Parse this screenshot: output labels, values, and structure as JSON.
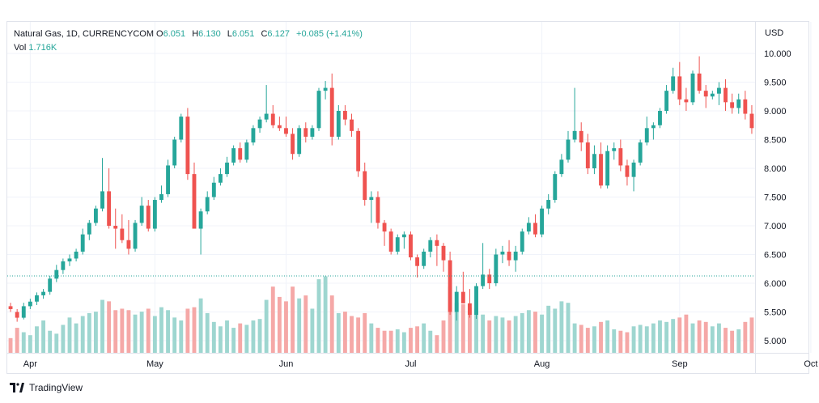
{
  "header": {
    "symbol": "Natural Gas, 1D, CURRENCYCOM",
    "open_label": "O",
    "open": "6.051",
    "high_label": "H",
    "high": "6.130",
    "low_label": "L",
    "low": "6.051",
    "close_label": "C",
    "close": "6.127",
    "change": "+0.085 (+1.41%)",
    "vol_label": "Vol",
    "vol": "1.716K"
  },
  "price_axis": {
    "currency": "USD",
    "ticks": [
      "10.000",
      "9.500",
      "9.000",
      "8.500",
      "8.000",
      "7.500",
      "7.000",
      "6.500",
      "6.000",
      "5.500",
      "5.000"
    ]
  },
  "time_axis": {
    "labels": [
      "Apr",
      "May",
      "Jun",
      "Jul",
      "Aug",
      "Sep",
      "Oct"
    ]
  },
  "footer": {
    "brand": "TradingView"
  },
  "colors": {
    "up": "#26a69a",
    "down": "#ef5350",
    "up_vol": "#9ed6d0",
    "down_vol": "#f5a8a7",
    "grid": "#f0f3fa",
    "text": "#131722"
  },
  "chart_data": {
    "type": "candlestick",
    "ylim": [
      4.8,
      10.3
    ],
    "last_price": 6.127,
    "month_labels": [
      {
        "label": "Apr",
        "index": 3
      },
      {
        "label": "May",
        "index": 22
      },
      {
        "label": "Jun",
        "index": 42
      },
      {
        "label": "Jul",
        "index": 61
      },
      {
        "label": "Aug",
        "index": 81
      },
      {
        "label": "Sep",
        "index": 102
      },
      {
        "label": "Oct",
        "index": 122
      }
    ],
    "ohlc": [
      [
        5.6,
        5.66,
        5.5,
        5.55
      ],
      [
        5.5,
        5.55,
        5.33,
        5.4
      ],
      [
        5.4,
        5.66,
        5.37,
        5.6
      ],
      [
        5.6,
        5.73,
        5.55,
        5.68
      ],
      [
        5.68,
        5.84,
        5.62,
        5.79
      ],
      [
        5.79,
        5.9,
        5.73,
        5.85
      ],
      [
        5.85,
        6.13,
        5.8,
        6.08
      ],
      [
        6.08,
        6.32,
        6.02,
        6.23
      ],
      [
        6.23,
        6.43,
        6.16,
        6.38
      ],
      [
        6.38,
        6.5,
        6.3,
        6.43
      ],
      [
        6.43,
        6.6,
        6.38,
        6.55
      ],
      [
        6.55,
        6.95,
        6.5,
        6.85
      ],
      [
        6.85,
        7.1,
        6.75,
        7.05
      ],
      [
        7.05,
        7.35,
        7.0,
        7.3
      ],
      [
        7.3,
        8.18,
        7.25,
        7.6
      ],
      [
        7.6,
        8.0,
        6.95,
        7.0
      ],
      [
        7.0,
        7.3,
        6.6,
        6.95
      ],
      [
        6.95,
        7.2,
        6.7,
        6.75
      ],
      [
        6.75,
        7.1,
        6.5,
        6.6
      ],
      [
        6.6,
        7.1,
        6.55,
        7.05
      ],
      [
        7.05,
        7.5,
        7.0,
        7.35
      ],
      [
        7.35,
        7.45,
        6.9,
        6.95
      ],
      [
        6.95,
        7.5,
        6.9,
        7.45
      ],
      [
        7.45,
        7.7,
        7.4,
        7.55
      ],
      [
        7.55,
        8.15,
        7.5,
        8.05
      ],
      [
        8.05,
        8.55,
        8.0,
        8.5
      ],
      [
        8.5,
        8.95,
        8.45,
        8.9
      ],
      [
        8.9,
        9.05,
        7.8,
        7.9
      ],
      [
        7.9,
        8.1,
        6.95,
        6.95
      ],
      [
        6.95,
        7.3,
        6.5,
        7.25
      ],
      [
        7.25,
        7.6,
        7.2,
        7.5
      ],
      [
        7.5,
        7.85,
        7.45,
        7.75
      ],
      [
        7.75,
        8.0,
        7.7,
        7.9
      ],
      [
        7.9,
        8.2,
        7.85,
        8.1
      ],
      [
        8.1,
        8.4,
        8.05,
        8.35
      ],
      [
        8.35,
        8.45,
        8.1,
        8.15
      ],
      [
        8.15,
        8.5,
        8.1,
        8.45
      ],
      [
        8.45,
        8.75,
        8.4,
        8.7
      ],
      [
        8.7,
        8.9,
        8.62,
        8.85
      ],
      [
        8.85,
        9.45,
        8.8,
        8.95
      ],
      [
        8.95,
        9.1,
        8.7,
        8.75
      ],
      [
        8.75,
        8.9,
        8.65,
        8.7
      ],
      [
        8.7,
        8.9,
        8.55,
        8.6
      ],
      [
        8.6,
        8.7,
        8.15,
        8.25
      ],
      [
        8.25,
        8.75,
        8.2,
        8.7
      ],
      [
        8.7,
        8.8,
        8.45,
        8.55
      ],
      [
        8.55,
        8.75,
        8.5,
        8.7
      ],
      [
        8.7,
        9.4,
        8.65,
        9.35
      ],
      [
        9.35,
        9.52,
        9.2,
        9.4
      ],
      [
        9.4,
        9.65,
        8.4,
        8.55
      ],
      [
        8.55,
        9.1,
        8.5,
        9.0
      ],
      [
        9.0,
        9.1,
        8.75,
        8.85
      ],
      [
        8.85,
        8.95,
        8.55,
        8.65
      ],
      [
        8.65,
        8.7,
        7.85,
        7.95
      ],
      [
        7.95,
        8.1,
        7.35,
        7.45
      ],
      [
        7.45,
        7.6,
        7.05,
        7.5
      ],
      [
        7.5,
        7.6,
        6.95,
        7.05
      ],
      [
        7.05,
        7.1,
        6.65,
        6.9
      ],
      [
        6.9,
        6.95,
        6.5,
        6.55
      ],
      [
        6.55,
        6.85,
        6.5,
        6.8
      ],
      [
        6.8,
        6.9,
        6.6,
        6.85
      ],
      [
        6.85,
        6.9,
        6.4,
        6.45
      ],
      [
        6.45,
        6.5,
        6.1,
        6.3
      ],
      [
        6.3,
        6.6,
        6.25,
        6.55
      ],
      [
        6.55,
        6.8,
        6.45,
        6.75
      ],
      [
        6.75,
        6.85,
        6.3,
        6.65
      ],
      [
        6.65,
        6.7,
        6.2,
        6.4
      ],
      [
        6.4,
        6.55,
        5.45,
        5.5
      ],
      [
        5.5,
        5.95,
        5.35,
        5.85
      ],
      [
        5.85,
        6.2,
        5.7,
        5.65
      ],
      [
        5.65,
        5.9,
        5.4,
        5.45
      ],
      [
        5.45,
        6.0,
        5.38,
        5.95
      ],
      [
        5.95,
        6.7,
        5.9,
        6.15
      ],
      [
        6.15,
        6.25,
        5.9,
        6.0
      ],
      [
        6.0,
        6.6,
        5.95,
        6.5
      ],
      [
        6.5,
        6.65,
        6.35,
        6.55
      ],
      [
        6.55,
        6.75,
        6.3,
        6.4
      ],
      [
        6.4,
        6.65,
        6.2,
        6.55
      ],
      [
        6.55,
        6.95,
        6.5,
        6.9
      ],
      [
        6.9,
        7.15,
        6.85,
        7.05
      ],
      [
        7.05,
        7.2,
        6.8,
        6.85
      ],
      [
        6.85,
        7.35,
        6.8,
        7.3
      ],
      [
        7.3,
        7.55,
        7.2,
        7.45
      ],
      [
        7.45,
        7.95,
        7.4,
        7.9
      ],
      [
        7.9,
        8.25,
        7.85,
        8.15
      ],
      [
        8.15,
        8.65,
        8.1,
        8.5
      ],
      [
        8.5,
        9.4,
        8.45,
        8.65
      ],
      [
        8.65,
        8.8,
        8.3,
        8.45
      ],
      [
        8.45,
        8.6,
        7.9,
        8.0
      ],
      [
        8.0,
        8.4,
        7.9,
        8.25
      ],
      [
        8.25,
        8.45,
        7.65,
        7.7
      ],
      [
        7.7,
        8.4,
        7.65,
        8.3
      ],
      [
        8.3,
        8.45,
        8.15,
        8.35
      ],
      [
        8.35,
        8.5,
        7.95,
        8.05
      ],
      [
        8.05,
        8.15,
        7.7,
        7.85
      ],
      [
        7.85,
        8.15,
        7.6,
        8.1
      ],
      [
        8.1,
        8.5,
        8.05,
        8.45
      ],
      [
        8.45,
        8.9,
        8.4,
        8.7
      ],
      [
        8.7,
        8.8,
        8.5,
        8.75
      ],
      [
        8.75,
        9.05,
        8.7,
        9.0
      ],
      [
        9.0,
        9.45,
        8.95,
        9.35
      ],
      [
        9.35,
        9.75,
        9.3,
        9.6
      ],
      [
        9.6,
        9.85,
        9.1,
        9.2
      ],
      [
        9.2,
        9.4,
        9.0,
        9.15
      ],
      [
        9.15,
        9.7,
        9.1,
        9.65
      ],
      [
        9.65,
        9.95,
        9.3,
        9.35
      ],
      [
        9.35,
        9.45,
        9.05,
        9.25
      ],
      [
        9.25,
        9.35,
        9.2,
        9.3
      ],
      [
        9.3,
        9.5,
        9.1,
        9.4
      ],
      [
        9.4,
        9.55,
        9.0,
        9.15
      ],
      [
        9.15,
        9.3,
        8.95,
        9.05
      ],
      [
        9.05,
        9.3,
        8.95,
        9.2
      ],
      [
        9.2,
        9.35,
        8.85,
        8.95
      ],
      [
        8.95,
        9.1,
        8.6,
        8.7
      ]
    ]
  }
}
